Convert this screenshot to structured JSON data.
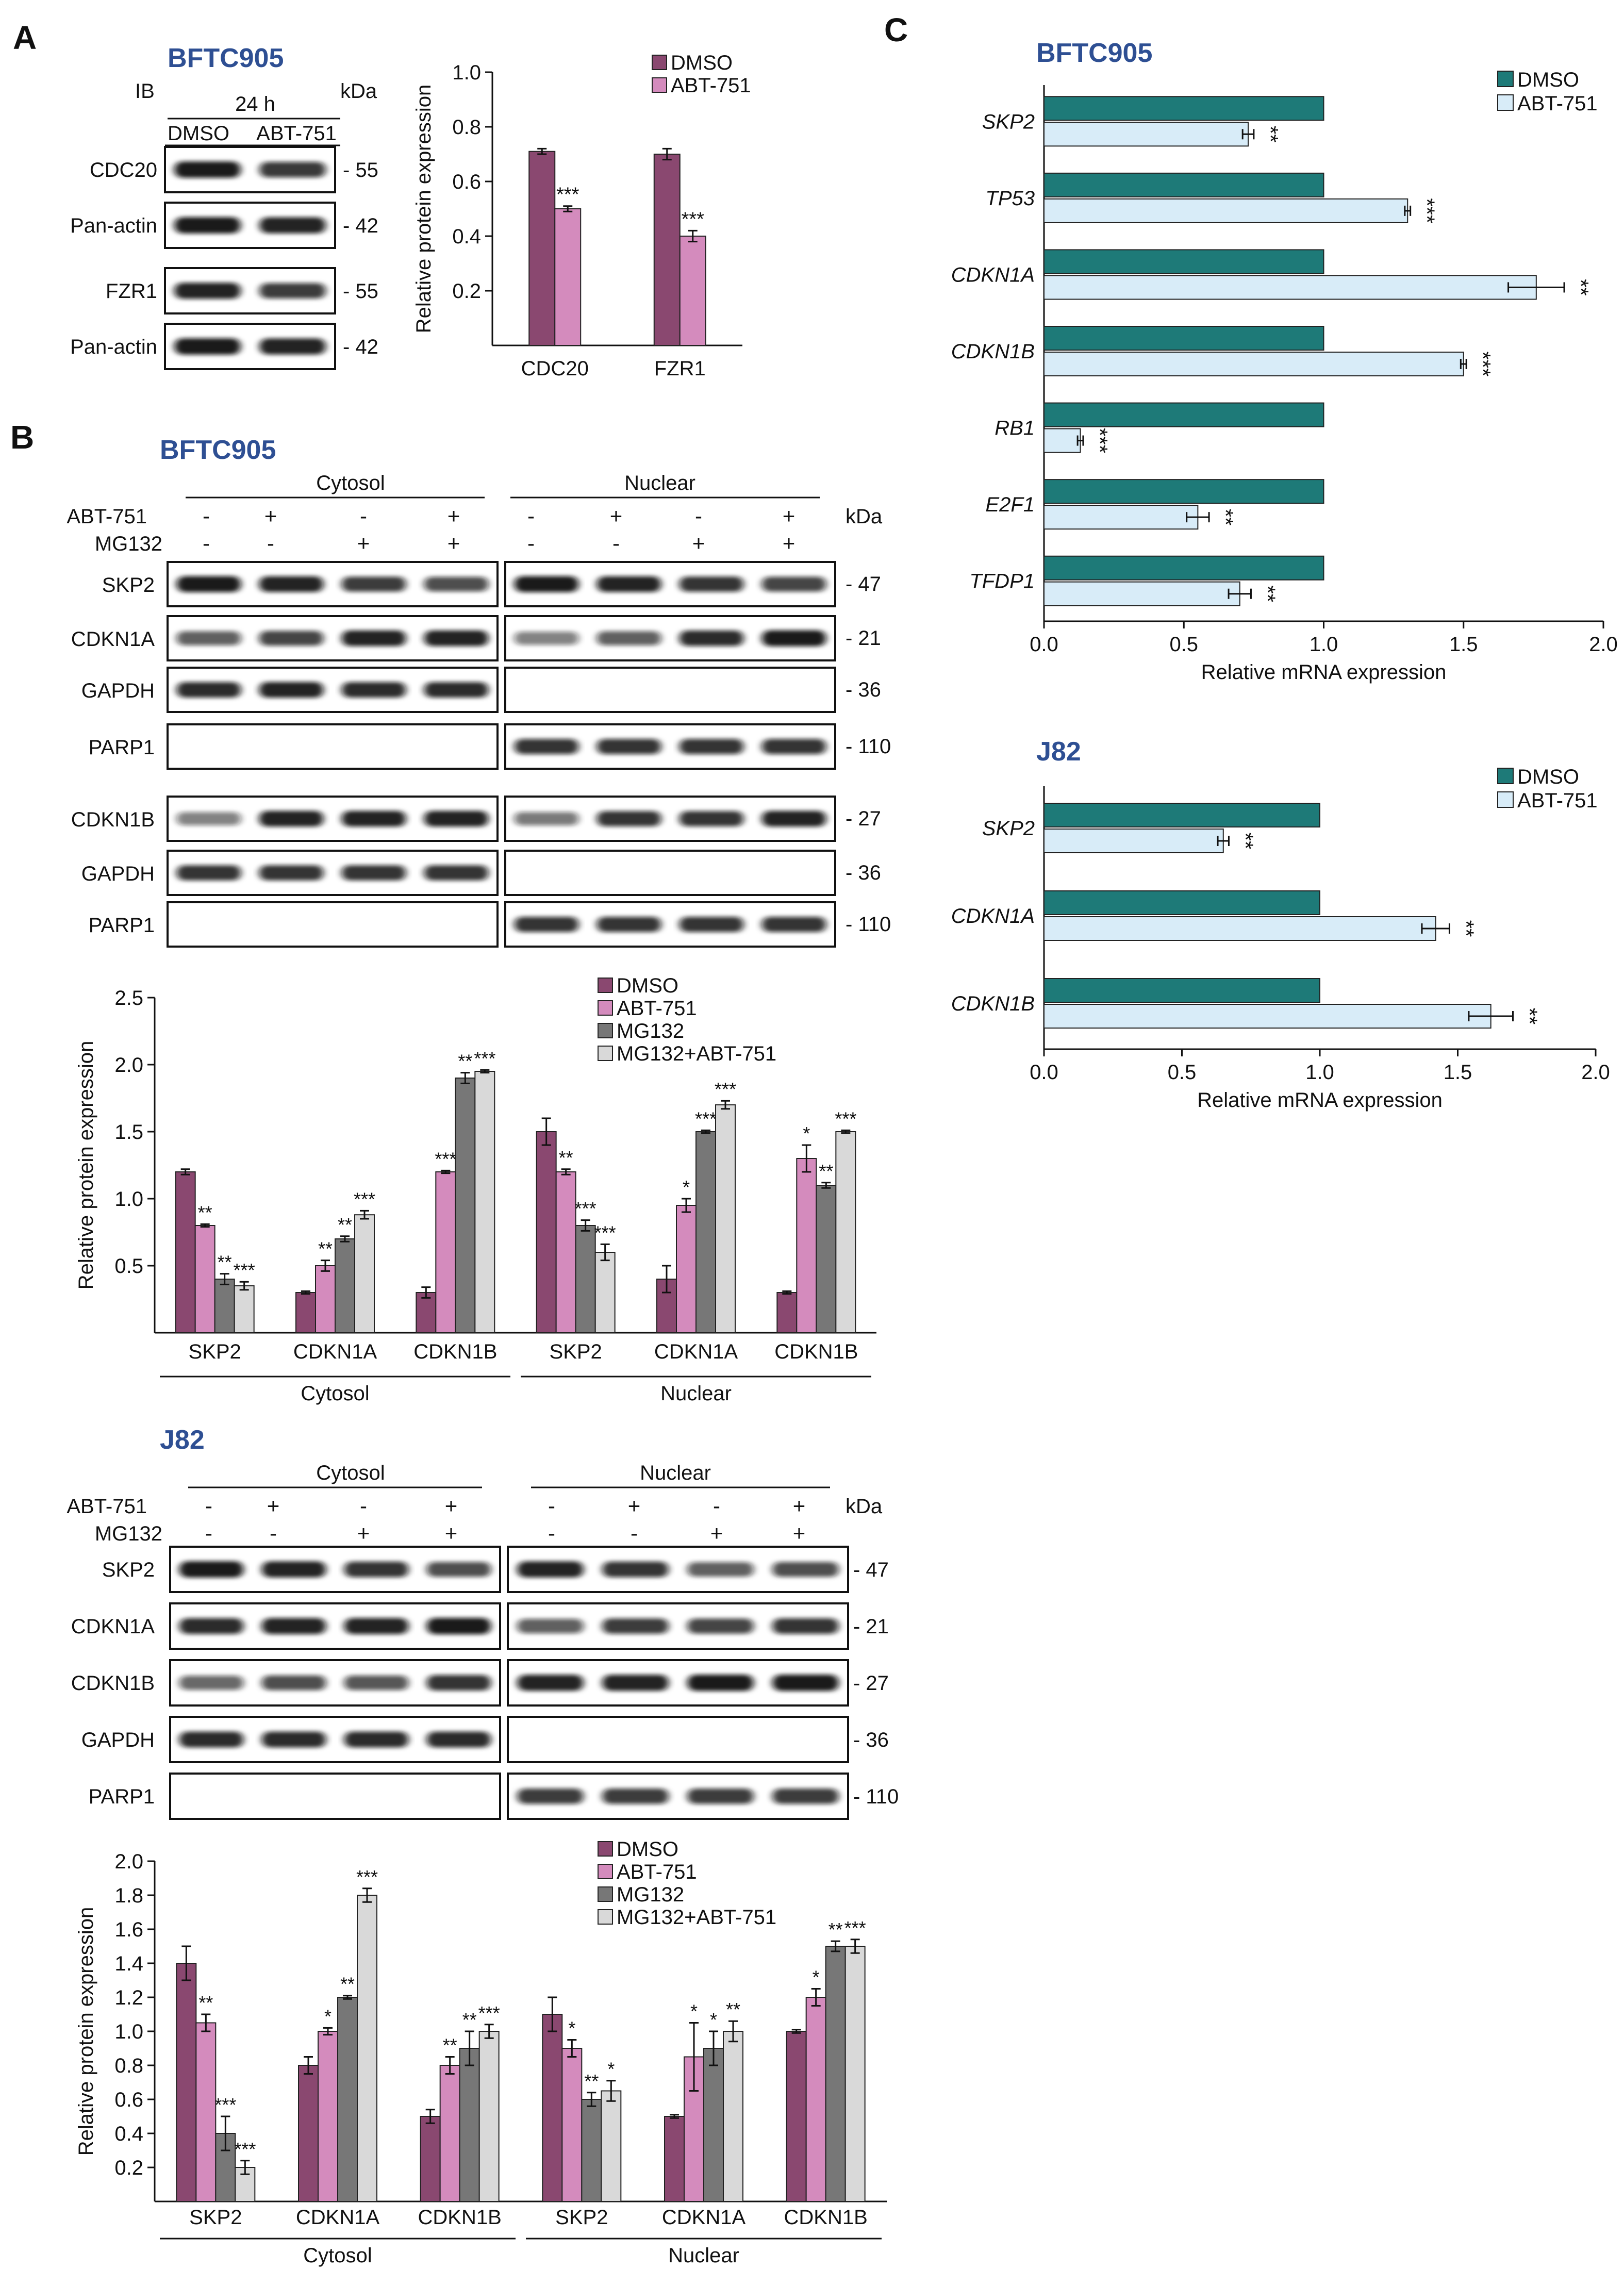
{
  "colors": {
    "dmso": "#8A4870",
    "abt": "#D48BBD",
    "mg": "#777777",
    "combo": "#D9D9D9",
    "teal": "#1E7A78",
    "lightblue": "#D8ECF8",
    "title": "#2E4F93"
  },
  "panelA": {
    "letter": "A",
    "cell": "BFTC905",
    "ib": "IB",
    "kda": "kDa",
    "time": "24 h",
    "lanes": [
      "DMSO",
      "ABT-751"
    ],
    "blots": [
      {
        "label": "CDC20",
        "mw": "- 55"
      },
      {
        "label": "Pan-actin",
        "mw": "- 42"
      },
      {
        "label": "FZR1",
        "mw": "- 55"
      },
      {
        "label": "Pan-actin",
        "mw": "- 42"
      }
    ],
    "chart_data": {
      "type": "bar",
      "categories": [
        "CDC20",
        "FZR1"
      ],
      "series": [
        {
          "name": "DMSO",
          "values": [
            0.71,
            0.7
          ],
          "errors": [
            0.01,
            0.02
          ]
        },
        {
          "name": "ABT-751",
          "values": [
            0.5,
            0.4
          ],
          "errors": [
            0.01,
            0.02
          ]
        }
      ],
      "stars": [
        [
          "",
          "***"
        ],
        [
          "",
          "***"
        ]
      ],
      "ylabel": "Relative protein expression",
      "ylim": [
        0,
        1.0
      ],
      "yticks": [
        "0.2",
        "0.4",
        "0.6",
        "0.8",
        "1.0"
      ],
      "legend": "top-right"
    }
  },
  "panelB": {
    "letter": "B",
    "bftc": {
      "cell": "BFTC905",
      "cytosol": "Cytosol",
      "nuclear": "Nuclear",
      "abt": "ABT-751",
      "mg": "MG132",
      "kda": "kDa",
      "abtSigns": [
        "-",
        "+",
        "-",
        "+"
      ],
      "mgSigns": [
        "-",
        "-",
        "+",
        "+"
      ],
      "blots": [
        {
          "label": "SKP2",
          "mw": "- 47"
        },
        {
          "label": "CDKN1A",
          "mw": "- 21"
        },
        {
          "label": "GAPDH",
          "mw": "- 36"
        },
        {
          "label": "PARP1",
          "mw": "- 110"
        },
        {
          "label": "CDKN1B",
          "mw": "- 27"
        },
        {
          "label": "GAPDH",
          "mw": "- 36"
        },
        {
          "label": "PARP1",
          "mw": "- 110"
        }
      ],
      "chart_data": {
        "type": "bar",
        "categories": [
          "SKP2",
          "CDKN1A",
          "CDKN1B",
          "SKP2",
          "CDKN1A",
          "CDKN1B"
        ],
        "groups": [
          "Cytosol",
          "Nuclear"
        ],
        "series": [
          {
            "name": "DMSO",
            "values": [
              1.2,
              0.3,
              0.3,
              1.5,
              0.4,
              0.3
            ],
            "errors": [
              0.02,
              0.01,
              0.04,
              0.1,
              0.1,
              0.01
            ]
          },
          {
            "name": "ABT-751",
            "values": [
              0.8,
              0.5,
              1.2,
              1.2,
              0.95,
              1.3
            ],
            "errors": [
              0.01,
              0.04,
              0.01,
              0.02,
              0.05,
              0.1
            ]
          },
          {
            "name": "MG132",
            "values": [
              0.4,
              0.7,
              1.9,
              0.8,
              1.5,
              1.1
            ],
            "errors": [
              0.04,
              0.02,
              0.04,
              0.04,
              0.01,
              0.02
            ]
          },
          {
            "name": "MG132+ABT-751",
            "values": [
              0.35,
              0.88,
              1.95,
              0.6,
              1.7,
              1.5
            ],
            "errors": [
              0.03,
              0.03,
              0.01,
              0.06,
              0.03,
              0.01
            ]
          }
        ],
        "stars": [
          [
            "",
            "**",
            "**",
            "***"
          ],
          [
            "",
            "**",
            "**",
            "***"
          ],
          [
            "",
            "***",
            "**",
            "***"
          ],
          [
            "",
            "**",
            "***",
            "***"
          ],
          [
            "",
            "*",
            "***",
            "***"
          ],
          [
            "",
            "*",
            "**",
            "***"
          ]
        ],
        "ylabel": "Relative protein expression",
        "ylim": [
          0,
          2.5
        ],
        "yticks": [
          "0.5",
          "1.0",
          "1.5",
          "2.0",
          "2.5"
        ],
        "legend": "top-right"
      }
    },
    "j82": {
      "cell": "J82",
      "cytosol": "Cytosol",
      "nuclear": "Nuclear",
      "abt": "ABT-751",
      "mg": "MG132",
      "kda": "kDa",
      "abtSigns": [
        "-",
        "+",
        "-",
        "+"
      ],
      "mgSigns": [
        "-",
        "-",
        "+",
        "+"
      ],
      "blots": [
        {
          "label": "SKP2",
          "mw": "- 47"
        },
        {
          "label": "CDKN1A",
          "mw": "- 21"
        },
        {
          "label": "CDKN1B",
          "mw": "- 27"
        },
        {
          "label": "GAPDH",
          "mw": "- 36"
        },
        {
          "label": "PARP1",
          "mw": "- 110"
        }
      ],
      "chart_data": {
        "type": "bar",
        "categories": [
          "SKP2",
          "CDKN1A",
          "CDKN1B",
          "SKP2",
          "CDKN1A",
          "CDKN1B"
        ],
        "groups": [
          "Cytosol",
          "Nuclear"
        ],
        "series": [
          {
            "name": "DMSO",
            "values": [
              1.4,
              0.8,
              0.5,
              1.1,
              0.5,
              1.0
            ],
            "errors": [
              0.1,
              0.05,
              0.04,
              0.1,
              0.01,
              0.01
            ]
          },
          {
            "name": "ABT-751",
            "values": [
              1.05,
              1.0,
              0.8,
              0.9,
              0.85,
              1.2
            ],
            "errors": [
              0.05,
              0.02,
              0.05,
              0.05,
              0.2,
              0.05
            ]
          },
          {
            "name": "MG132",
            "values": [
              0.4,
              1.2,
              0.9,
              0.6,
              0.9,
              1.5
            ],
            "errors": [
              0.1,
              0.01,
              0.1,
              0.04,
              0.1,
              0.03
            ]
          },
          {
            "name": "MG132+ABT-751",
            "values": [
              0.2,
              1.8,
              1.0,
              0.65,
              1.0,
              1.5
            ],
            "errors": [
              0.04,
              0.04,
              0.04,
              0.06,
              0.06,
              0.04
            ]
          }
        ],
        "stars": [
          [
            "",
            "**",
            "***",
            "***"
          ],
          [
            "",
            "*",
            "**",
            "***"
          ],
          [
            "",
            "**",
            "**",
            "***"
          ],
          [
            "",
            "*",
            "**",
            "*"
          ],
          [
            "",
            "*",
            "*",
            "**"
          ],
          [
            "",
            "*",
            "**",
            "***"
          ]
        ],
        "ylabel": "Relative protein expression",
        "ylim": [
          0,
          2.0
        ],
        "yticks": [
          "0.2",
          "0.4",
          "0.6",
          "0.8",
          "1.0",
          "1.2",
          "1.4",
          "1.6",
          "1.8",
          "2.0"
        ],
        "legend": "top-right"
      }
    }
  },
  "panelC": {
    "letter": "C",
    "bftc": {
      "cell": "BFTC905",
      "chart_data": {
        "type": "bar",
        "orientation": "horizontal",
        "categories": [
          "SKP2",
          "TP53",
          "CDKN1A",
          "CDKN1B",
          "RB1",
          "E2F1",
          "TFDP1"
        ],
        "series": [
          {
            "name": "DMSO",
            "values": [
              1,
              1,
              1,
              1,
              1,
              1,
              1
            ]
          },
          {
            "name": "ABT-751",
            "values": [
              0.73,
              1.3,
              1.76,
              1.5,
              0.13,
              0.55,
              0.7
            ],
            "errors": [
              0.02,
              0.01,
              0.1,
              0.01,
              0.01,
              0.04,
              0.04
            ]
          }
        ],
        "stars": [
          "**",
          "***",
          "**",
          "***",
          "***",
          "**",
          "**"
        ],
        "xlabel": "Relative mRNA expression",
        "xlim": [
          0,
          2.0
        ],
        "xticks": [
          "0.0",
          "0.5",
          "1.0",
          "1.5",
          "2.0"
        ],
        "legend": "top-right"
      }
    },
    "j82": {
      "cell": "J82",
      "chart_data": {
        "type": "bar",
        "orientation": "horizontal",
        "categories": [
          "SKP2",
          "CDKN1A",
          "CDKN1B"
        ],
        "series": [
          {
            "name": "DMSO",
            "values": [
              1,
              1,
              1
            ]
          },
          {
            "name": "ABT-751",
            "values": [
              0.65,
              1.42,
              1.62
            ],
            "errors": [
              0.02,
              0.05,
              0.08
            ]
          }
        ],
        "stars": [
          "**",
          "**",
          "**"
        ],
        "xlabel": "Relative mRNA expression",
        "xlim": [
          0,
          2.0
        ],
        "xticks": [
          "0.0",
          "0.5",
          "1.0",
          "1.5",
          "2.0"
        ],
        "legend": "top-right"
      }
    }
  }
}
